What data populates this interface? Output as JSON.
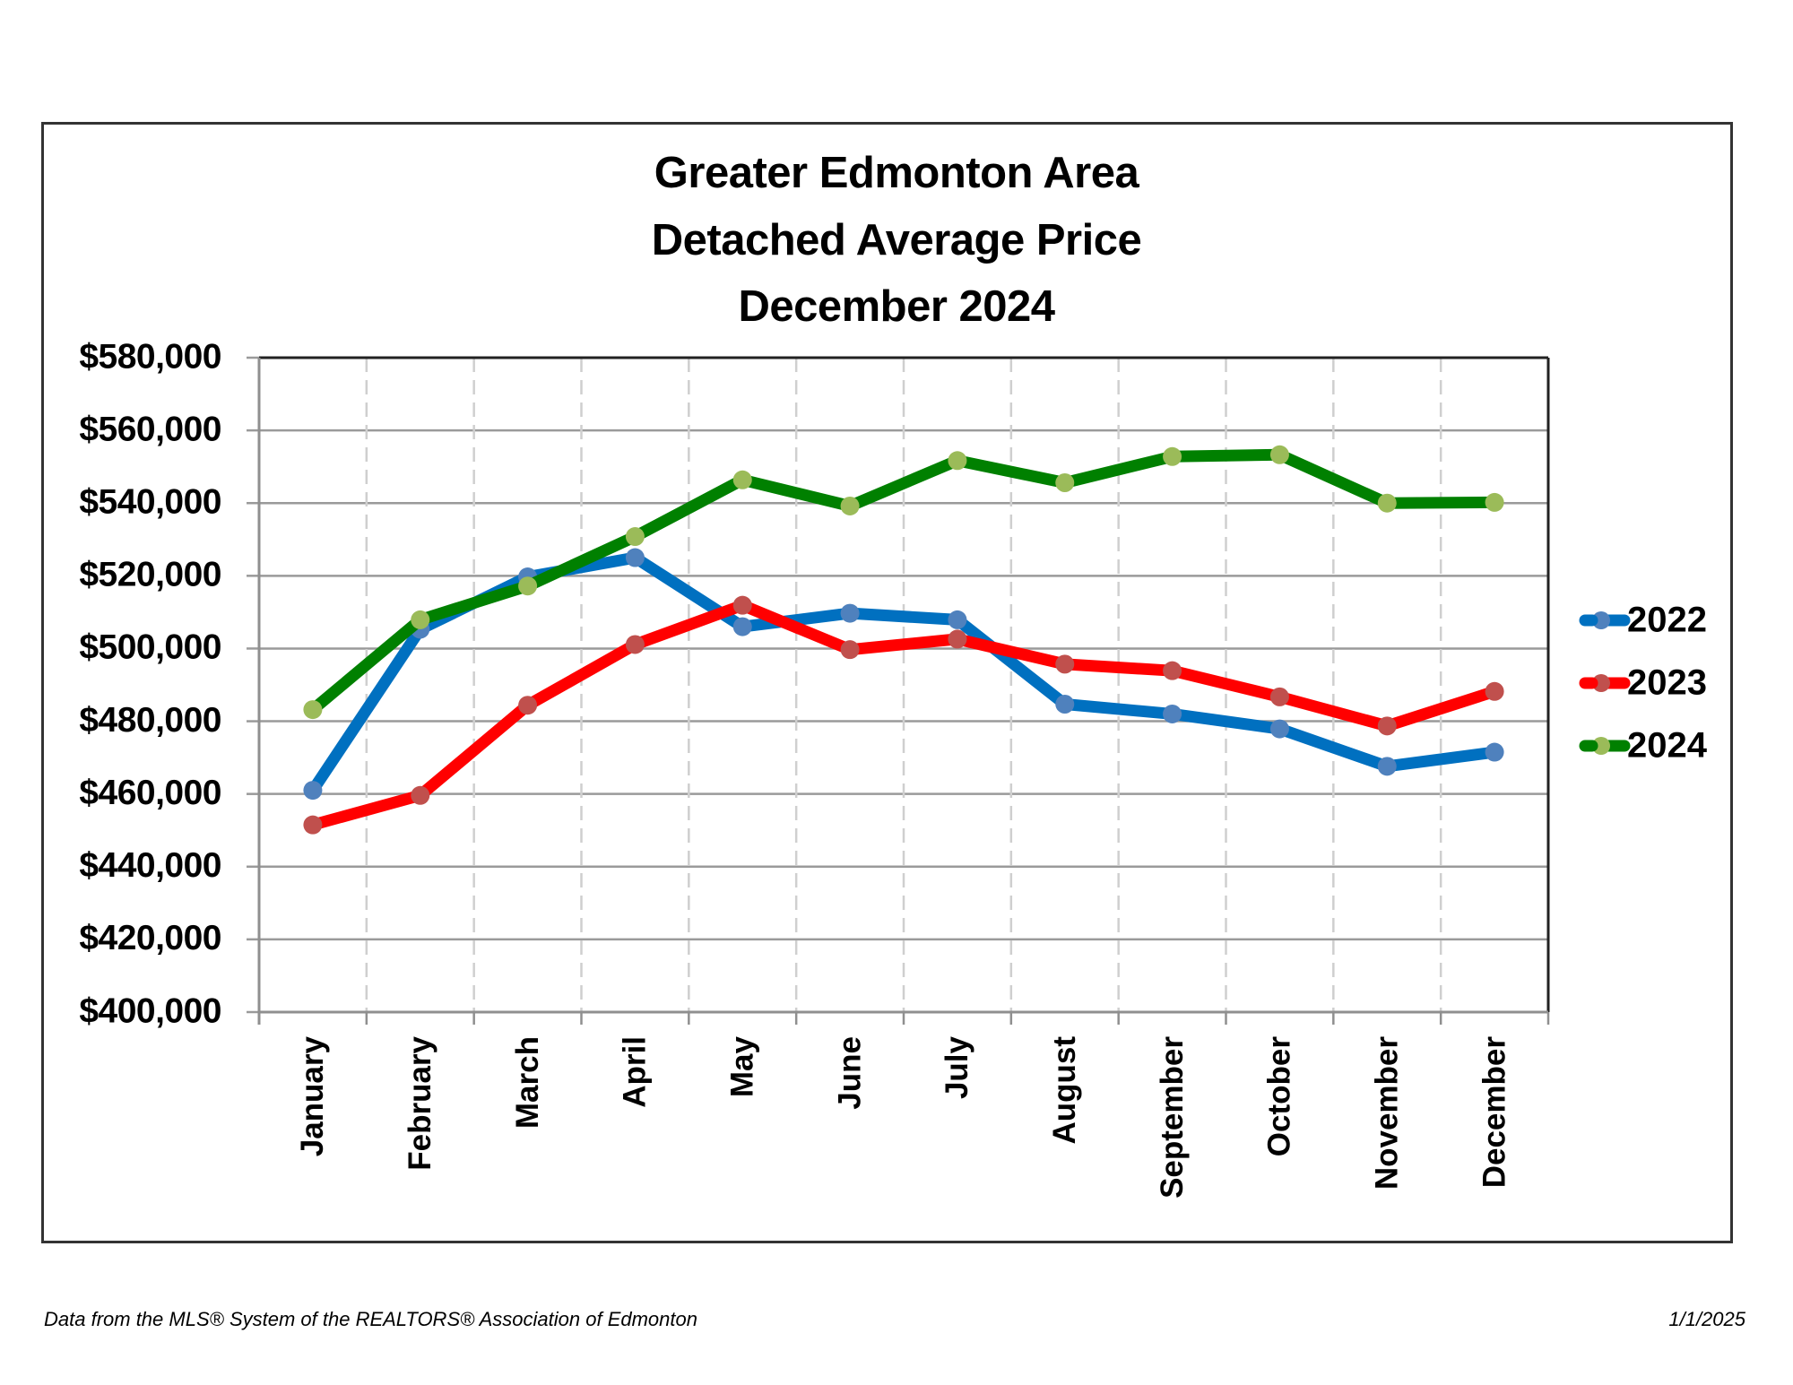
{
  "chart_data": {
    "type": "line",
    "title": [
      "Greater Edmonton Area",
      "Detached Average Price",
      "December 2024"
    ],
    "xlabel": "",
    "ylabel": "",
    "categories": [
      "January",
      "February",
      "March",
      "April",
      "May",
      "June",
      "July",
      "August",
      "September",
      "October",
      "November",
      "December"
    ],
    "ylim": [
      400000,
      580000
    ],
    "yticks": [
      400000,
      420000,
      440000,
      460000,
      480000,
      500000,
      520000,
      540000,
      560000,
      580000
    ],
    "ytick_labels": [
      "$400,000",
      "$420,000",
      "$440,000",
      "$460,000",
      "$480,000",
      "$500,000",
      "$520,000",
      "$540,000",
      "$560,000",
      "$580,000"
    ],
    "grid": {
      "horizontal": "solid",
      "vertical": "dashed"
    },
    "legend_position": "right",
    "series": [
      {
        "name": "2022",
        "line_color": "#0070C0",
        "marker_color": "#4F81BD",
        "values": [
          461000,
          505300,
          519700,
          525000,
          506000,
          509700,
          507900,
          484700,
          482000,
          477900,
          467600,
          471500
        ]
      },
      {
        "name": "2023",
        "line_color": "#FF0000",
        "marker_color": "#C0504D",
        "values": [
          451500,
          459600,
          484400,
          501100,
          511900,
          499700,
          502600,
          495700,
          493900,
          486700,
          478700,
          488200
        ]
      },
      {
        "name": "2024",
        "line_color": "#008000",
        "marker_color": "#9BBB59",
        "values": [
          483200,
          507900,
          517200,
          530800,
          546400,
          539200,
          551700,
          545600,
          552800,
          553300,
          540000,
          540200
        ]
      }
    ]
  },
  "footer": {
    "source": "Data from the MLS® System of the REALTORS® Association of Edmonton",
    "date": "1/1/2025"
  }
}
